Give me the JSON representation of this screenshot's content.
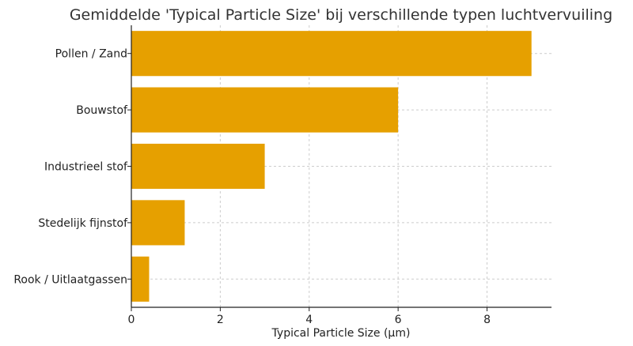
{
  "chart_data": {
    "type": "bar",
    "orientation": "horizontal",
    "title": "Gemiddelde 'Typical Particle Size' bij verschillende typen luchtvervuiling",
    "xlabel": "Typical Particle Size (µm)",
    "ylabel": "",
    "categories": [
      "Rook / Uitlaatgassen",
      "Stedelijk fijnstof",
      "Industrieel stof",
      "Bouwstof",
      "Pollen / Zand"
    ],
    "values": [
      0.4,
      1.2,
      3.0,
      6.0,
      9.0
    ],
    "xlim": [
      0,
      9.45
    ],
    "xticks": [
      0,
      2,
      4,
      6,
      8
    ],
    "grid": true,
    "bar_color": "#E6A000"
  }
}
